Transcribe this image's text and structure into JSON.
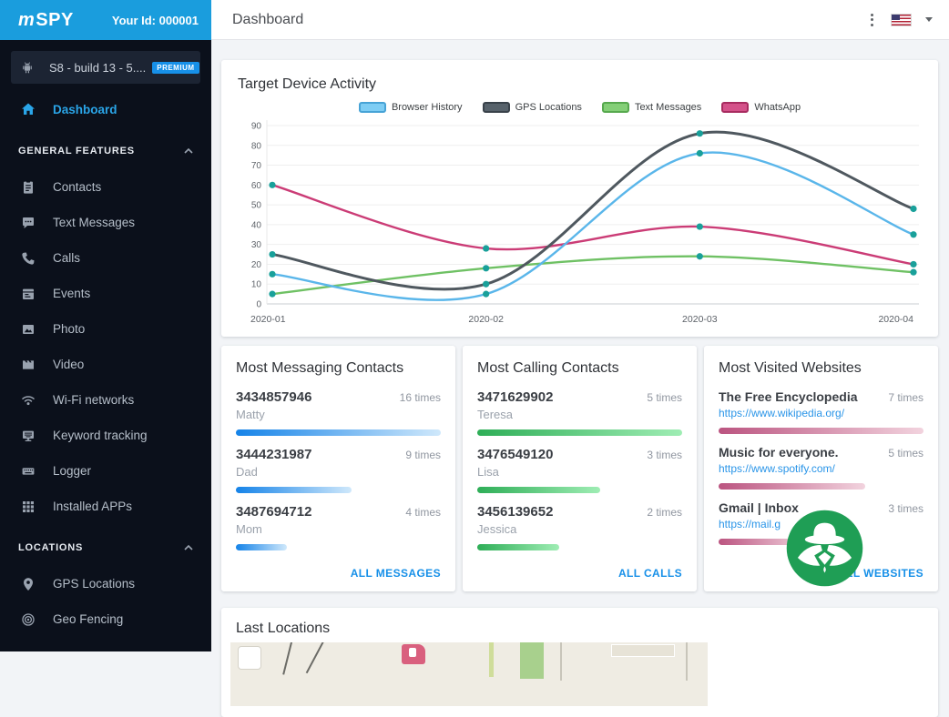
{
  "topbar": {
    "logo": "mSPY",
    "your_id": "Your Id: 000001"
  },
  "header": {
    "title": "Dashboard"
  },
  "sidebar": {
    "device": {
      "name": "S8 - build 13 - 5....",
      "badge": "PREMIUM"
    },
    "dashboard_label": "Dashboard",
    "sections": [
      {
        "label": "GENERAL FEATURES",
        "items": [
          {
            "label": "Contacts"
          },
          {
            "label": "Text Messages"
          },
          {
            "label": "Calls"
          },
          {
            "label": "Events"
          },
          {
            "label": "Photo"
          },
          {
            "label": "Video"
          },
          {
            "label": "Wi-Fi networks"
          },
          {
            "label": "Keyword tracking"
          },
          {
            "label": "Logger"
          },
          {
            "label": "Installed APPs"
          }
        ]
      },
      {
        "label": "LOCATIONS",
        "items": [
          {
            "label": "GPS Locations"
          },
          {
            "label": "Geo Fencing"
          }
        ]
      }
    ]
  },
  "chart_data": {
    "type": "line",
    "title": "Target Device Activity",
    "x": [
      "2020-01",
      "2020-02",
      "2020-03",
      "2020-04"
    ],
    "ylim": [
      0,
      90
    ],
    "ytick_step": 10,
    "grid": true,
    "legend_position": "top",
    "marker_color": "#19a09a",
    "series": [
      {
        "name": "Browser History",
        "color": "#5ab6ea",
        "legend_fill": "#7ecdf4",
        "legend_border": "#47a3d6",
        "values": [
          15,
          5,
          76,
          35
        ]
      },
      {
        "name": "GPS Locations",
        "color": "#4f585f",
        "legend_fill": "#57626b",
        "legend_border": "#39424a",
        "values": [
          25,
          10,
          86,
          48
        ]
      },
      {
        "name": "Text Messages",
        "color": "#6fc164",
        "legend_fill": "#84cf77",
        "legend_border": "#57a94e",
        "values": [
          5,
          18,
          24,
          16
        ]
      },
      {
        "name": "WhatsApp",
        "color": "#cb3c76",
        "legend_fill": "#d4528a",
        "legend_border": "#a82c60",
        "values": [
          60,
          28,
          39,
          20
        ]
      }
    ]
  },
  "cards": {
    "messaging": {
      "title": "Most Messaging Contacts",
      "link": "ALL MESSAGES",
      "bar": {
        "from": "#1583e8",
        "to": "#cfe8fb"
      },
      "items": [
        {
          "number": "3434857946",
          "name": "Matty",
          "times": "16 times",
          "count": 16
        },
        {
          "number": "3444231987",
          "name": "Dad",
          "times": "9 times",
          "count": 9
        },
        {
          "number": "3487694712",
          "name": "Mom",
          "times": "4 times",
          "count": 4
        }
      ]
    },
    "calling": {
      "title": "Most Calling Contacts",
      "link": "ALL CALLS",
      "bar": {
        "from": "#2eae57",
        "to": "#9fedb4"
      },
      "items": [
        {
          "number": "3471629902",
          "name": "Teresa",
          "times": "5 times",
          "count": 5
        },
        {
          "number": "3476549120",
          "name": "Lisa",
          "times": "3 times",
          "count": 3
        },
        {
          "number": "3456139652",
          "name": "Jessica",
          "times": "2 times",
          "count": 2
        }
      ]
    },
    "websites": {
      "title": "Most Visited Websites",
      "link": "ALL WEBSITES",
      "bar": {
        "from": "#bb5480",
        "to": "#f2d3de"
      },
      "items": [
        {
          "title": "The Free Encyclopedia",
          "url": "https://www.wikipedia.org/",
          "times": "7 times",
          "count": 7
        },
        {
          "title": "Music for everyone.",
          "url": "https://www.spotify.com/",
          "times": "5 times",
          "count": 5
        },
        {
          "title": "Gmail | Inbox",
          "url": "https://mail.g",
          "times": "3 times",
          "count": 3
        }
      ]
    }
  },
  "locations_card": {
    "title": "Last Locations"
  }
}
